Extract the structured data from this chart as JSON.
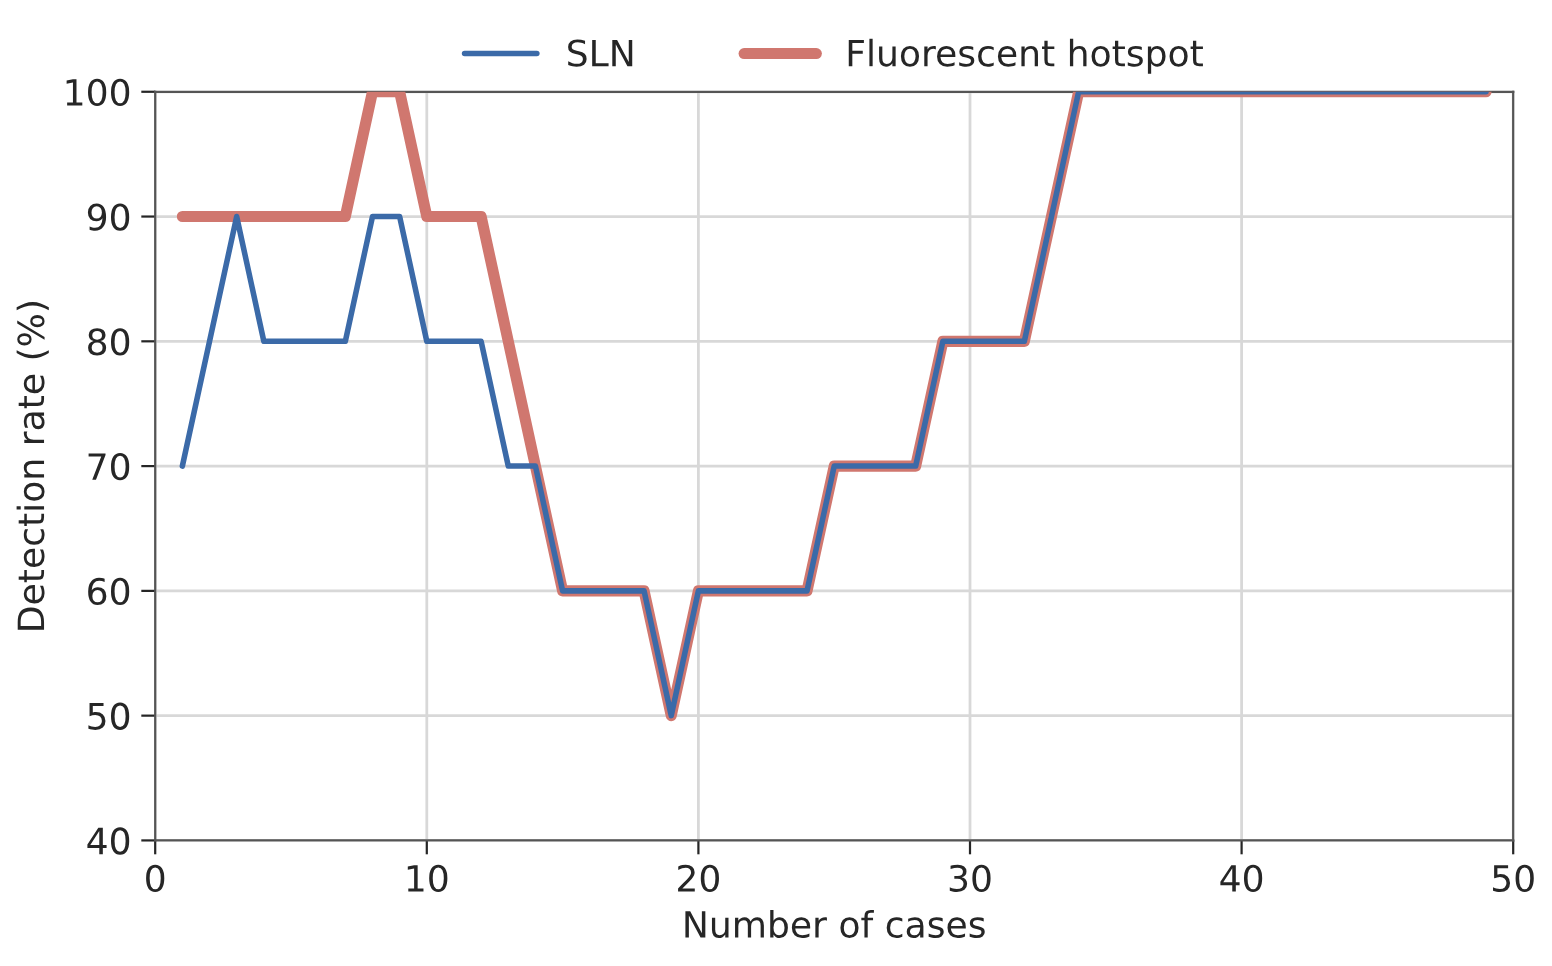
{
  "chart_data": {
    "type": "line",
    "xlabel": "Number of cases",
    "ylabel": "Detection rate (%)",
    "x": [
      1,
      2,
      3,
      4,
      5,
      6,
      7,
      8,
      9,
      10,
      11,
      12,
      13,
      14,
      15,
      16,
      17,
      18,
      19,
      20,
      21,
      22,
      23,
      24,
      25,
      26,
      27,
      28,
      29,
      30,
      31,
      32,
      33,
      34,
      35,
      36,
      37,
      38,
      39,
      40,
      41,
      42,
      43,
      44,
      45,
      46,
      47,
      48,
      49
    ],
    "series": [
      {
        "name": "SLN",
        "color": "#3b6aa8",
        "values": [
          70,
          80,
          90,
          80,
          80,
          80,
          80,
          90,
          90,
          80,
          80,
          80,
          70,
          70,
          60,
          60,
          60,
          60,
          50,
          60,
          60,
          60,
          60,
          60,
          70,
          70,
          70,
          70,
          80,
          80,
          80,
          80,
          90,
          100,
          100,
          100,
          100,
          100,
          100,
          100,
          100,
          100,
          100,
          100,
          100,
          100,
          100,
          100,
          100
        ]
      },
      {
        "name": "Fluorescent hotspot",
        "color": "#d0776f",
        "values": [
          90,
          90,
          90,
          90,
          90,
          90,
          90,
          100,
          100,
          90,
          90,
          90,
          80,
          70,
          60,
          60,
          60,
          60,
          50,
          60,
          60,
          60,
          60,
          60,
          70,
          70,
          70,
          70,
          80,
          80,
          80,
          80,
          90,
          100,
          100,
          100,
          100,
          100,
          100,
          100,
          100,
          100,
          100,
          100,
          100,
          100,
          100,
          100,
          100
        ]
      }
    ],
    "xlim": [
      0,
      50
    ],
    "ylim": [
      40,
      100
    ],
    "xticks": [
      0,
      10,
      20,
      30,
      40,
      50
    ],
    "yticks": [
      40,
      50,
      60,
      70,
      80,
      90,
      100
    ],
    "grid": true,
    "legend": "top",
    "marker": "none",
    "line_style": "solid"
  }
}
